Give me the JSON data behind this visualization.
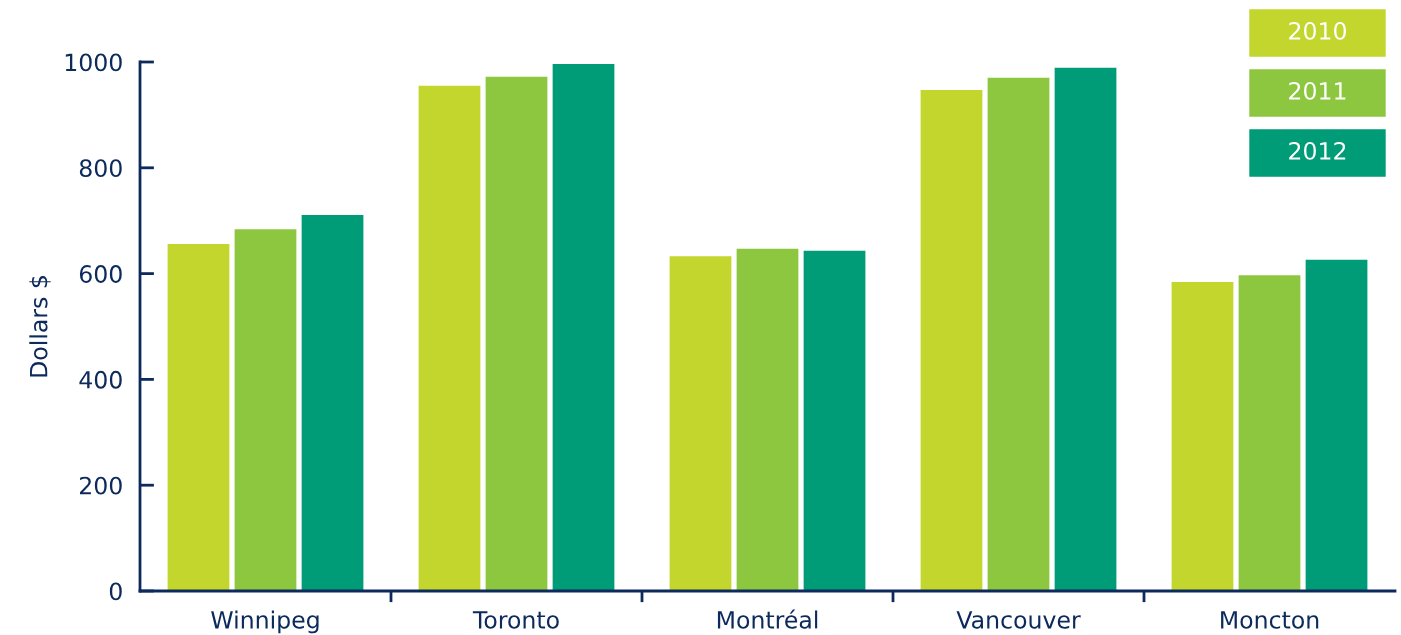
{
  "chart_data": {
    "type": "bar",
    "ylabel": "Dollars $",
    "categories": [
      "Winnipeg",
      "Toronto",
      "Montréal",
      "Vancouver",
      "Moncton"
    ],
    "series": [
      {
        "name": "2010",
        "color": "#c2d62e",
        "values": [
          656,
          955,
          633,
          947,
          584
        ]
      },
      {
        "name": "2011",
        "color": "#8dc63f",
        "values": [
          684,
          972,
          647,
          970,
          597
        ]
      },
      {
        "name": "2012",
        "color": "#009b77",
        "values": [
          711,
          996,
          643,
          989,
          626
        ]
      }
    ],
    "ylim": [
      0,
      1000
    ],
    "yticks": [
      0,
      200,
      400,
      600,
      800,
      1000
    ],
    "grid": false,
    "legend": "top right"
  }
}
